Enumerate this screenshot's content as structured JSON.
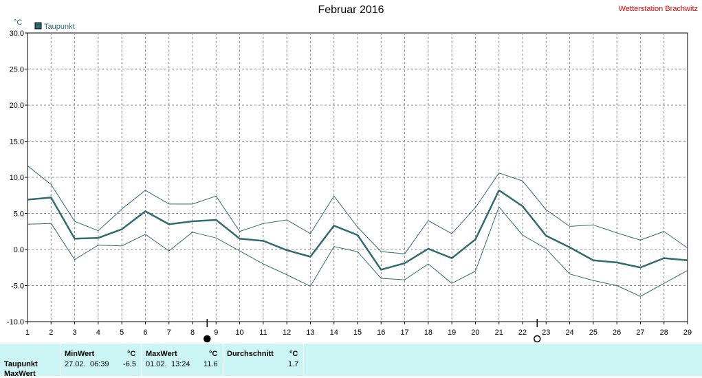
{
  "title": "Februar 2016",
  "station": "Wetterstation Brachwitz",
  "colors": {
    "series": "#2f6b70",
    "band": "#2f6b70",
    "grid": "#8c8c8c",
    "station": "#e00000",
    "stats_bg": "#ccf5f5"
  },
  "chart_data": {
    "type": "line",
    "unit_label": "°C",
    "legend": "Taupunkt",
    "legend_position": "top-left",
    "ylim": [
      -10,
      30
    ],
    "yticks": [
      "30.0",
      "25.0",
      "20.0",
      "15.0",
      "10.0",
      "5.0",
      "0.0",
      "-5.0",
      "-10.0"
    ],
    "x": [
      1,
      2,
      3,
      4,
      5,
      6,
      7,
      8,
      9,
      10,
      11,
      12,
      13,
      14,
      15,
      16,
      17,
      18,
      19,
      20,
      21,
      22,
      23,
      24,
      25,
      26,
      27,
      28,
      29
    ],
    "grid": true,
    "series": [
      {
        "name": "Taupunkt",
        "values": [
          6.9,
          7.2,
          1.5,
          1.6,
          2.8,
          5.3,
          3.5,
          3.9,
          4.1,
          1.5,
          1.2,
          -0.1,
          -1.0,
          3.3,
          2.0,
          -2.8,
          -1.9,
          0.1,
          -1.2,
          1.4,
          8.2,
          6.0,
          1.9,
          0.3,
          -1.5,
          -1.8,
          -2.5,
          -1.2,
          -1.5
        ]
      },
      {
        "values": [
          11.6,
          9.0,
          3.9,
          2.6,
          5.6,
          8.2,
          6.3,
          6.3,
          7.4,
          2.5,
          3.6,
          4.1,
          2.2,
          7.4,
          3.1,
          -0.3,
          -0.6,
          4.0,
          2.2,
          5.8,
          10.6,
          9.5,
          5.5,
          3.2,
          3.4,
          2.3,
          1.3,
          2.5,
          0.2
        ]
      },
      {
        "values": [
          3.5,
          3.6,
          -1.4,
          0.6,
          0.5,
          2.1,
          -0.2,
          2.4,
          1.6,
          -0.2,
          -2.0,
          -3.5,
          -5.1,
          0.4,
          -0.3,
          -4.0,
          -4.2,
          -2.0,
          -4.7,
          -3.0,
          5.9,
          2.0,
          0.1,
          -3.4,
          -4.3,
          -5.0,
          -6.5,
          -4.7,
          -2.9
        ]
      }
    ],
    "markers": [
      {
        "day": 9,
        "symbol": "new-moon-icon"
      },
      {
        "day": 23,
        "symbol": "full-moon-icon"
      }
    ]
  },
  "stats": {
    "row_label": "Taupunkt",
    "row_label_2": "MaxWert",
    "min": {
      "header": "MinWert",
      "unit": "°C",
      "date": "27.02.",
      "time": "06:39",
      "value": "-6.5"
    },
    "max": {
      "header": "MaxWert",
      "unit": "°C",
      "date": "01.02.",
      "time": "13:24",
      "value": "11.6"
    },
    "avg": {
      "header": "Durchschnitt",
      "unit": "°C",
      "value": "1.7"
    }
  }
}
